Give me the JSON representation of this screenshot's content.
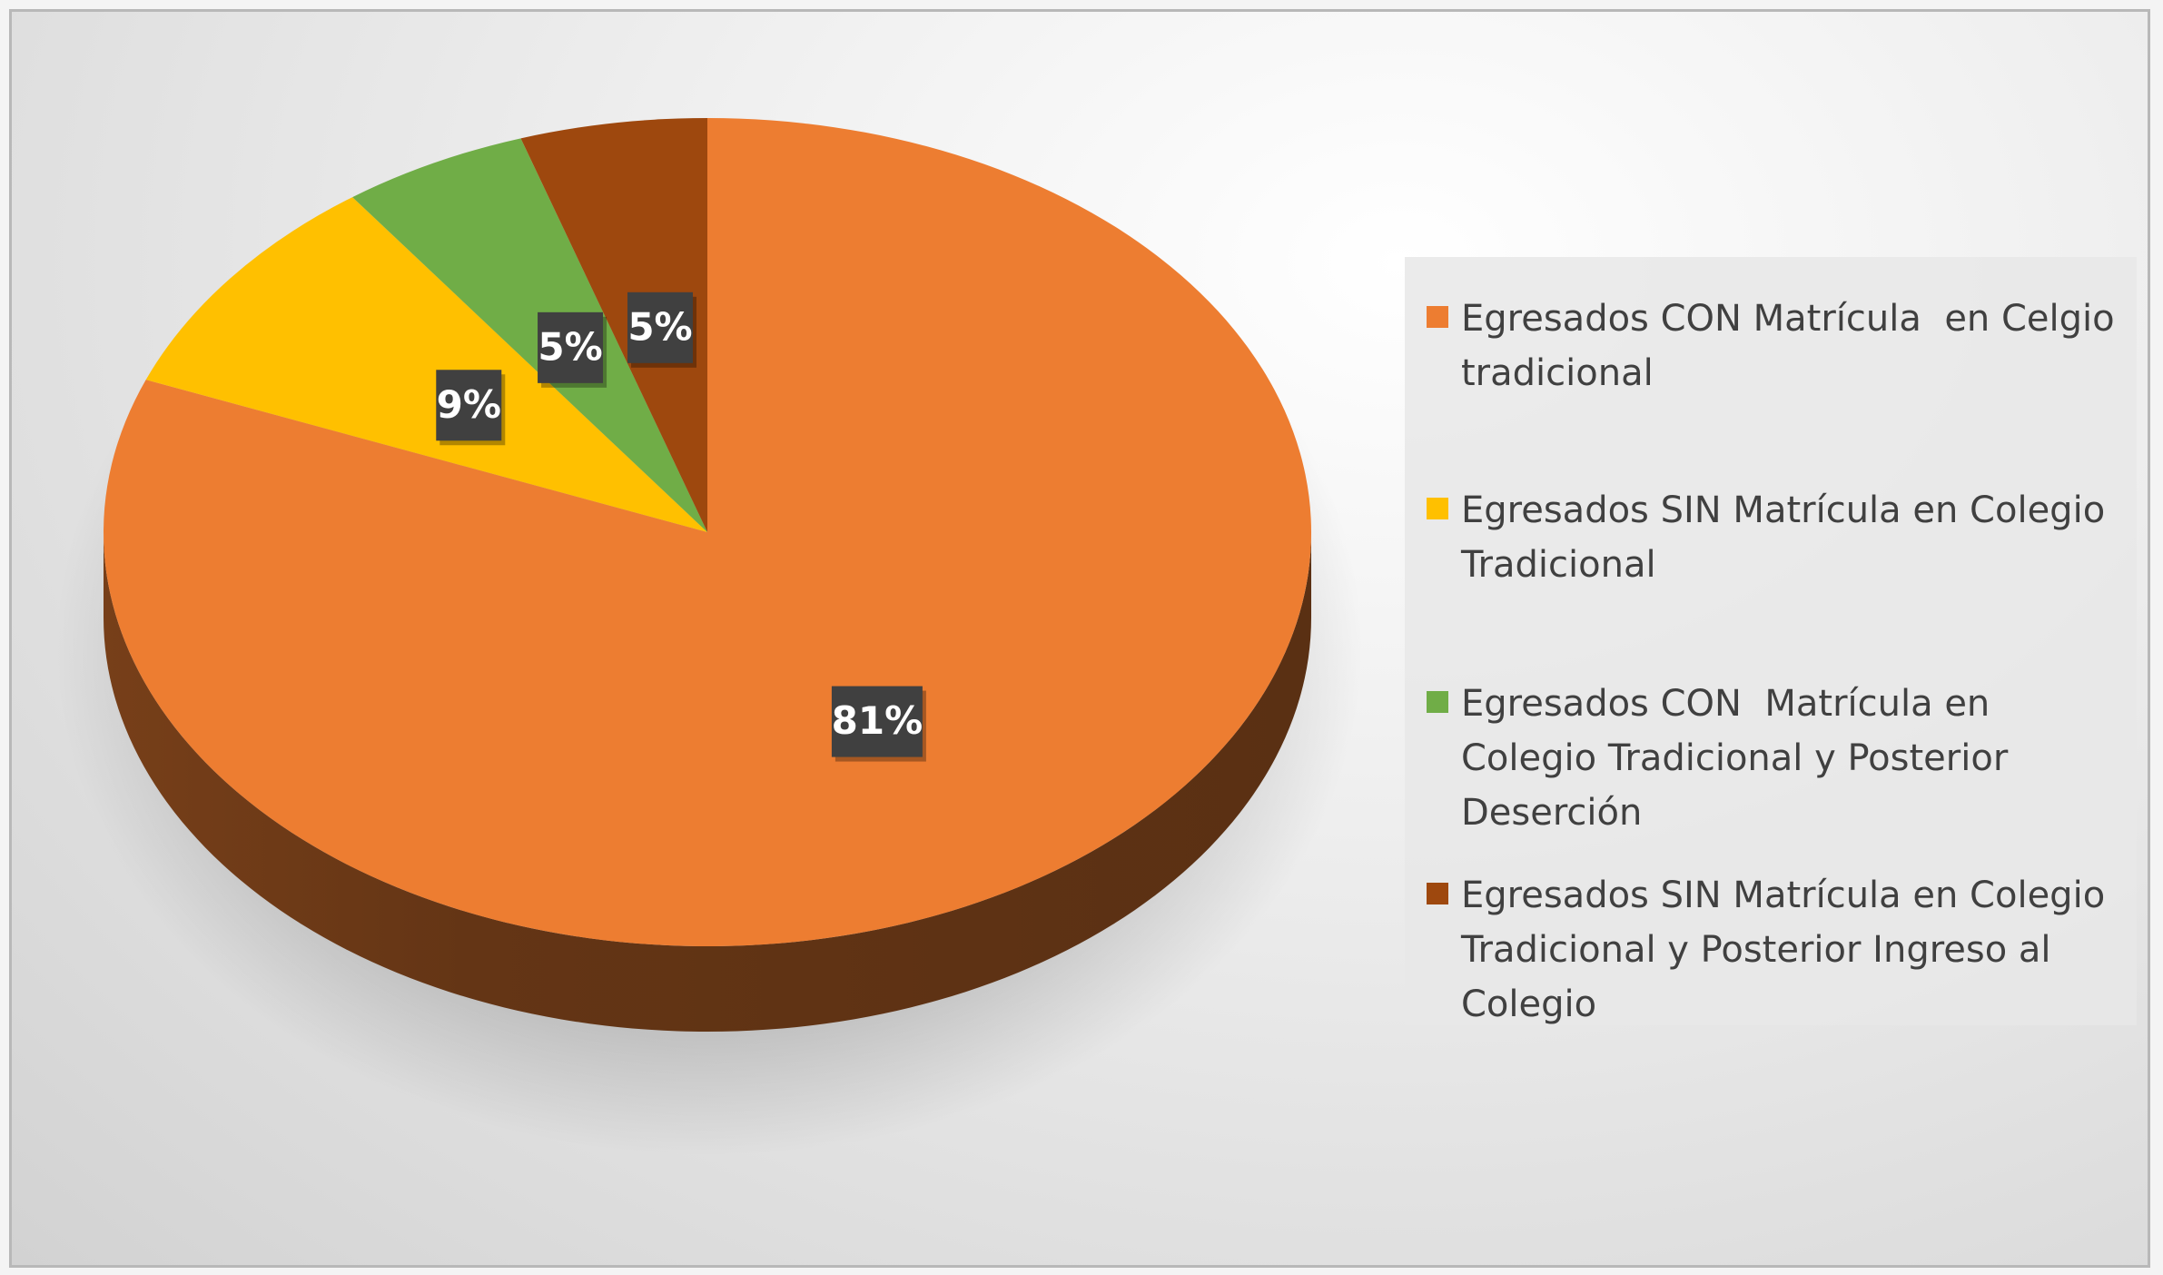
{
  "chart_data": {
    "type": "pie",
    "categories": [
      "Egresados CON Matrícula  en Celgio tradicional",
      "Egresados SIN Matrícula en Colegio Tradicional",
      "Egresados CON  Matrícula en Colegio Tradicional y Posterior Deserción",
      "Egresados SIN Matrícula en Colegio Tradicional y Posterior Ingreso al Colegio"
    ],
    "values": [
      81,
      9,
      5,
      5
    ],
    "value_labels": [
      "81%",
      "9%",
      "5%",
      "5%"
    ],
    "colors": [
      "#ed7d31",
      "#ffc000",
      "#70ad47",
      "#9e480e"
    ],
    "legend": "right"
  }
}
